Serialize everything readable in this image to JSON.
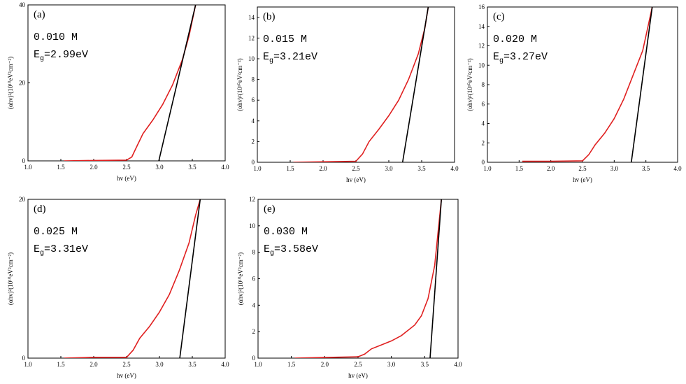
{
  "chart_data": [
    {
      "type": "line",
      "panel_label": "(a)",
      "concentration": "0.010 M",
      "eg_prefix": "E",
      "eg_sub": "g",
      "eg_value": "=2.99eV",
      "xlabel": "hv (eV)",
      "ylabel": "(αhv)²(10¹⁰eV²cm⁻²)",
      "xlim": [
        1.0,
        4.0
      ],
      "ylim": [
        0,
        40
      ],
      "xticks": [
        "1.0",
        "1.5",
        "2.0",
        "2.5",
        "3.0",
        "3.5",
        "4.0"
      ],
      "yticks": [
        "0",
        "20",
        "40"
      ],
      "series": [
        {
          "color": "#e02020",
          "x": [
            1.55,
            2.0,
            2.5,
            2.58,
            2.65,
            2.75,
            2.9,
            3.05,
            3.2,
            3.35,
            3.45,
            3.55
          ],
          "y": [
            0,
            0.1,
            0.2,
            1.0,
            3.5,
            7.0,
            10.5,
            14.5,
            19.5,
            26.0,
            32.0,
            40.0
          ]
        },
        {
          "color": "#000000",
          "x": [
            2.99,
            3.55
          ],
          "y": [
            0,
            40
          ]
        }
      ]
    },
    {
      "type": "line",
      "panel_label": "(b)",
      "concentration": "0.015 M",
      "eg_prefix": "E",
      "eg_sub": "g",
      "eg_value": "=3.21eV",
      "xlabel": "hv (eV)",
      "ylabel": "(αhv)²(10¹⁰eV²cm⁻²)",
      "xlim": [
        1.0,
        4.0
      ],
      "ylim": [
        0,
        15
      ],
      "xticks": [
        "1.0",
        "1.5",
        "2.0",
        "2.5",
        "3.0",
        "3.5",
        "4.0"
      ],
      "yticks": [
        "0",
        "2",
        "4",
        "6",
        "8",
        "10",
        "12",
        "14"
      ],
      "series": [
        {
          "color": "#e02020",
          "x": [
            1.55,
            2.0,
            2.5,
            2.6,
            2.7,
            2.85,
            3.0,
            3.15,
            3.3,
            3.45,
            3.55,
            3.6
          ],
          "y": [
            0,
            0.05,
            0.1,
            0.8,
            2.0,
            3.2,
            4.5,
            6.0,
            8.0,
            10.5,
            13.0,
            15.0
          ]
        },
        {
          "color": "#000000",
          "x": [
            3.21,
            3.6
          ],
          "y": [
            0,
            15
          ]
        }
      ]
    },
    {
      "type": "line",
      "panel_label": "(c)",
      "concentration": "0.020 M",
      "eg_prefix": "E",
      "eg_sub": "g",
      "eg_value": "=3.27eV",
      "xlabel": "hv (eV)",
      "ylabel": "(αhv)²(10¹⁰eV²cm⁻²)",
      "xlim": [
        1.0,
        4.0
      ],
      "ylim": [
        0,
        16
      ],
      "xticks": [
        "1.0",
        "1.5",
        "2.0",
        "2.5",
        "3.0",
        "3.5",
        "4.0"
      ],
      "yticks": [
        "0",
        "2",
        "4",
        "6",
        "8",
        "10",
        "12",
        "14",
        "16"
      ],
      "series": [
        {
          "color": "#e02020",
          "x": [
            1.55,
            2.0,
            2.5,
            2.6,
            2.7,
            2.85,
            3.0,
            3.15,
            3.3,
            3.45,
            3.55,
            3.6
          ],
          "y": [
            0.1,
            0.1,
            0.15,
            0.8,
            1.8,
            3.0,
            4.5,
            6.5,
            9.0,
            11.5,
            14.5,
            16.0
          ]
        },
        {
          "color": "#000000",
          "x": [
            3.27,
            3.6
          ],
          "y": [
            0,
            16
          ]
        }
      ]
    },
    {
      "type": "line",
      "panel_label": "(d)",
      "concentration": "0.025 M",
      "eg_prefix": "E",
      "eg_sub": "g",
      "eg_value": "=3.31eV",
      "xlabel": "hv (eV)",
      "ylabel": "(αhv)²(10¹⁰eV²cm⁻²)",
      "xlim": [
        1.0,
        4.0
      ],
      "ylim": [
        0,
        20
      ],
      "xticks": [
        "1.0",
        "1.5",
        "2.0",
        "2.5",
        "3.0",
        "3.5",
        "4.0"
      ],
      "yticks": [
        "0",
        "20"
      ],
      "series": [
        {
          "color": "#e02020",
          "x": [
            1.55,
            2.0,
            2.5,
            2.6,
            2.7,
            2.85,
            3.0,
            3.15,
            3.3,
            3.45,
            3.55,
            3.62
          ],
          "y": [
            0,
            0.1,
            0.1,
            1.0,
            2.5,
            4.0,
            5.8,
            8.0,
            11.0,
            14.5,
            18.0,
            20.0
          ]
        },
        {
          "color": "#000000",
          "x": [
            3.31,
            3.62
          ],
          "y": [
            0,
            20
          ]
        }
      ]
    },
    {
      "type": "line",
      "panel_label": "(e)",
      "concentration": "0.030 M",
      "eg_prefix": "E",
      "eg_sub": "g",
      "eg_value": "=3.58eV",
      "xlabel": "hv (eV)",
      "ylabel": "(αhv)²(10¹⁰eV²cm⁻²)",
      "xlim": [
        1.0,
        4.0
      ],
      "ylim": [
        0,
        12
      ],
      "xticks": [
        "1.0",
        "1.5",
        "2.0",
        "2.5",
        "3.0",
        "3.5",
        "4.0"
      ],
      "yticks": [
        "0",
        "2",
        "4",
        "6",
        "8",
        "10",
        "12"
      ],
      "series": [
        {
          "color": "#e02020",
          "x": [
            1.55,
            2.0,
            2.5,
            2.6,
            2.7,
            2.85,
            3.0,
            3.15,
            3.25,
            3.35,
            3.45,
            3.55,
            3.65,
            3.75
          ],
          "y": [
            0,
            0.05,
            0.1,
            0.3,
            0.7,
            1.0,
            1.3,
            1.7,
            2.1,
            2.5,
            3.2,
            4.5,
            7.0,
            12.0
          ]
        },
        {
          "color": "#000000",
          "x": [
            3.58,
            3.75
          ],
          "y": [
            0,
            12
          ]
        }
      ]
    }
  ]
}
